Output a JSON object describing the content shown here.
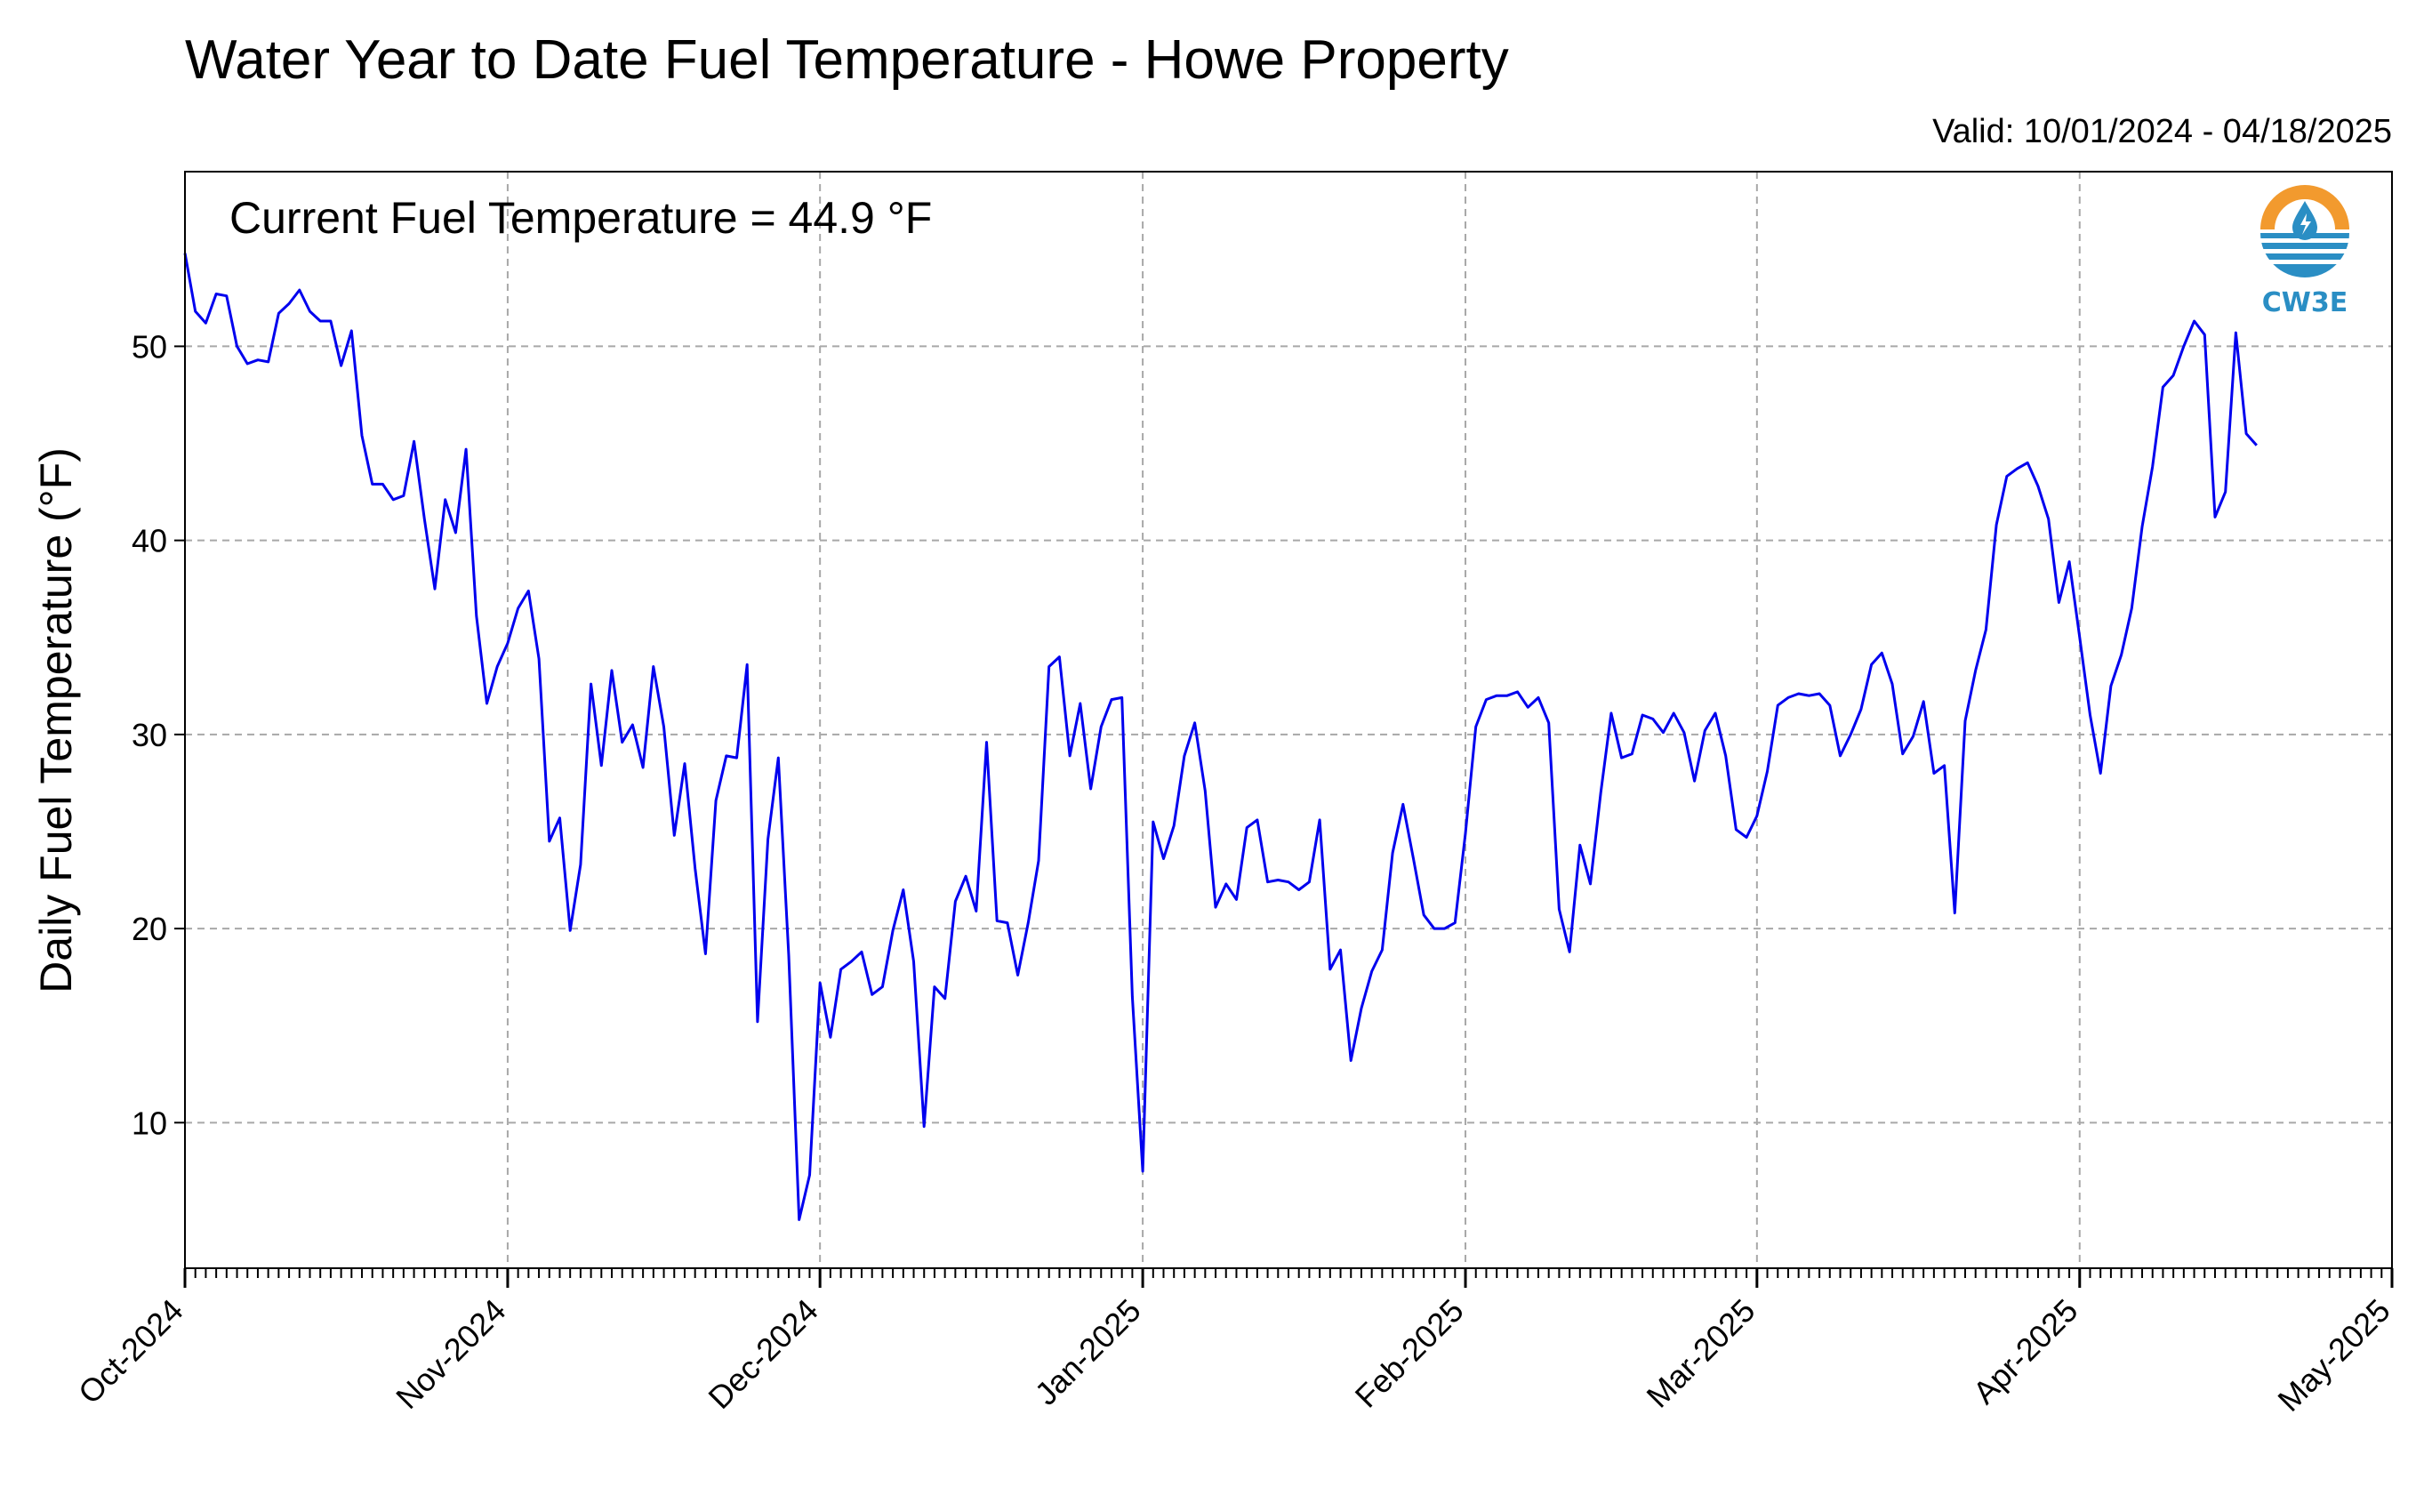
{
  "chart_data": {
    "type": "line",
    "title": "Water Year to Date Fuel Temperature - Howe Property",
    "subtitle": "Valid: 10/01/2024 - 04/18/2025",
    "annotation": "Current Fuel Temperature = 44.9 °F",
    "ylabel": "Daily Fuel Temperature (°F)",
    "xlabel": "",
    "ylim": [
      2.5,
      59
    ],
    "xlim": [
      "2024-10-01",
      "2025-05-01"
    ],
    "yticks": [
      10,
      20,
      30,
      40,
      50
    ],
    "xticks": [
      "Oct-2024",
      "Nov-2024",
      "Dec-2024",
      "Jan-2025",
      "Feb-2025",
      "Mar-2025",
      "Apr-2025",
      "May-2025"
    ],
    "grid": true,
    "line_color": "#0000ee",
    "series": [
      {
        "start_date": "2024-10-01",
        "values": [
          54.8,
          51.8,
          51.2,
          52.7,
          52.6,
          50.0,
          49.1,
          49.3,
          49.2,
          51.7,
          52.2,
          52.9,
          51.8,
          51.3,
          51.3,
          49.0,
          50.8,
          45.4,
          42.9,
          42.9,
          42.1,
          42.3,
          45.1,
          41.1,
          37.5,
          42.1,
          40.4,
          44.7,
          36.1,
          31.6,
          33.5,
          34.7,
          36.5,
          37.4,
          33.9,
          24.5,
          25.7,
          19.9,
          23.3,
          32.6,
          28.4,
          33.3,
          29.6,
          30.5,
          28.3,
          33.5,
          30.4,
          24.8,
          28.5,
          23.1,
          18.7,
          26.6,
          28.9,
          28.8,
          33.6,
          15.2,
          24.6,
          28.8,
          18.6,
          5.0,
          7.3,
          17.2,
          14.4,
          17.9,
          18.3,
          18.8,
          16.6,
          17.0,
          19.9,
          22.0,
          18.3,
          9.8,
          17.0,
          16.4,
          21.4,
          22.7,
          20.9,
          29.6,
          20.4,
          20.3,
          17.6,
          20.3,
          23.5,
          33.5,
          34.0,
          28.9,
          31.6,
          27.2,
          30.4,
          31.8,
          31.9,
          16.5,
          7.5,
          25.5,
          23.6,
          25.3,
          28.9,
          30.6,
          27.1,
          21.1,
          22.3,
          21.5,
          25.2,
          25.6,
          22.4,
          22.5,
          22.4,
          22.0,
          22.4,
          25.6,
          17.9,
          18.9,
          13.2,
          15.9,
          17.8,
          18.9,
          23.9,
          26.4,
          23.6,
          20.7,
          20.0,
          20.0,
          20.3,
          24.9,
          30.4,
          31.8,
          32.0,
          32.0,
          32.2,
          31.4,
          31.9,
          30.6,
          21.0,
          18.8,
          24.3,
          22.3,
          27.0,
          31.1,
          28.8,
          29.0,
          31.0,
          30.8,
          30.1,
          31.1,
          30.1,
          27.6,
          30.2,
          31.1,
          28.9,
          25.1,
          24.7,
          25.8,
          28.1,
          31.5,
          31.9,
          32.1,
          32.0,
          32.1,
          31.5,
          28.9,
          30.0,
          31.3,
          33.6,
          34.2,
          32.6,
          29.0,
          29.9,
          31.7,
          28.0,
          28.4,
          20.8,
          30.7,
          33.3,
          35.4,
          40.8,
          43.3,
          43.7,
          44.0,
          42.8,
          41.1,
          36.8,
          38.9,
          35.0,
          31.0,
          28.0,
          32.5,
          34.1,
          36.5,
          40.7,
          43.8,
          47.9,
          48.5,
          50.0,
          51.3,
          50.6,
          41.2,
          42.5,
          50.7,
          45.5,
          44.9
        ]
      }
    ]
  },
  "logo": {
    "text": "CW3E",
    "icon": "cw3e-drop-logo-icon"
  }
}
